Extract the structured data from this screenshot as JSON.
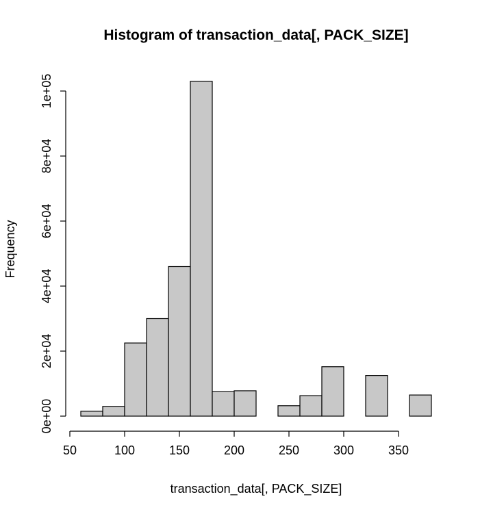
{
  "chart_data": {
    "type": "bar",
    "title": "Histogram of transaction_data[, PACK_SIZE]",
    "xlabel": "transaction_data[, PACK_SIZE]",
    "ylabel": "Frequency",
    "bar_color": "#c8c8c8",
    "bin_edges": [
      60,
      80,
      100,
      120,
      140,
      160,
      180,
      200,
      220,
      240,
      260,
      280,
      300,
      320,
      340,
      360,
      380
    ],
    "counts": [
      1500,
      3000,
      22500,
      30000,
      46000,
      103000,
      7500,
      7800,
      0,
      3200,
      6300,
      15200,
      0,
      12500,
      0,
      6500
    ],
    "xlim": [
      50,
      380
    ],
    "ylim": [
      0,
      100000
    ],
    "x_ticks": [
      50,
      100,
      150,
      200,
      250,
      300,
      350
    ],
    "x_tick_labels": [
      "50",
      "100",
      "150",
      "200",
      "250",
      "300",
      "350"
    ],
    "y_ticks": [
      0,
      20000,
      40000,
      60000,
      80000,
      100000
    ],
    "y_tick_labels": [
      "0e+00",
      "2e+04",
      "4e+04",
      "6e+04",
      "8e+04",
      "1e+05"
    ],
    "grid": false,
    "legend": "none"
  }
}
